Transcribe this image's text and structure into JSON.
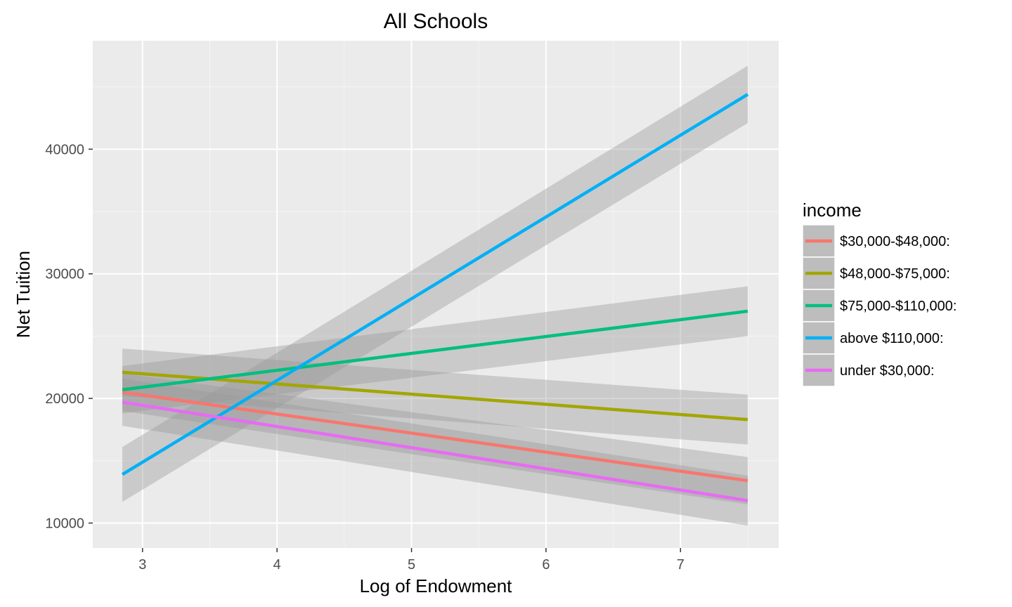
{
  "chart_data": {
    "type": "line",
    "title": "All Schools",
    "xlabel": "Log of Endowment",
    "ylabel": "Net Tuition",
    "xlim": [
      2.63,
      7.73
    ],
    "ylim": [
      8000,
      48700
    ],
    "x_ticks": [
      3,
      4,
      5,
      6,
      7
    ],
    "y_ticks": [
      10000,
      20000,
      30000,
      40000
    ],
    "grid": true,
    "confidence_bands": true,
    "legend": {
      "title": "income",
      "position": "right"
    },
    "series": [
      {
        "name": "$30,000-$48,000:",
        "color": "#F8766D",
        "x": [
          2.85,
          7.5
        ],
        "y": [
          20500,
          13400
        ],
        "ci_lower": [
          19000,
          11500
        ],
        "ci_upper": [
          22000,
          15300
        ]
      },
      {
        "name": "$48,000-$75,000:",
        "color": "#A3A500",
        "x": [
          2.85,
          7.5
        ],
        "y": [
          22100,
          18300
        ],
        "ci_lower": [
          20200,
          16300
        ],
        "ci_upper": [
          24000,
          20300
        ]
      },
      {
        "name": "$75,000-$110,000:",
        "color": "#00BF7D",
        "x": [
          2.85,
          7.5
        ],
        "y": [
          20700,
          27000
        ],
        "ci_lower": [
          18800,
          25000
        ],
        "ci_upper": [
          22600,
          29000
        ]
      },
      {
        "name": "above $110,000:",
        "color": "#00B0F6",
        "x": [
          2.85,
          7.5
        ],
        "y": [
          13900,
          44400
        ],
        "ci_lower": [
          11700,
          42100
        ],
        "ci_upper": [
          16100,
          46700
        ]
      },
      {
        "name": "under $30,000:",
        "color": "#E76BF3",
        "x": [
          2.85,
          7.5
        ],
        "y": [
          19700,
          11800
        ],
        "ci_lower": [
          17800,
          9800
        ],
        "ci_upper": [
          21600,
          13800
        ]
      }
    ]
  }
}
